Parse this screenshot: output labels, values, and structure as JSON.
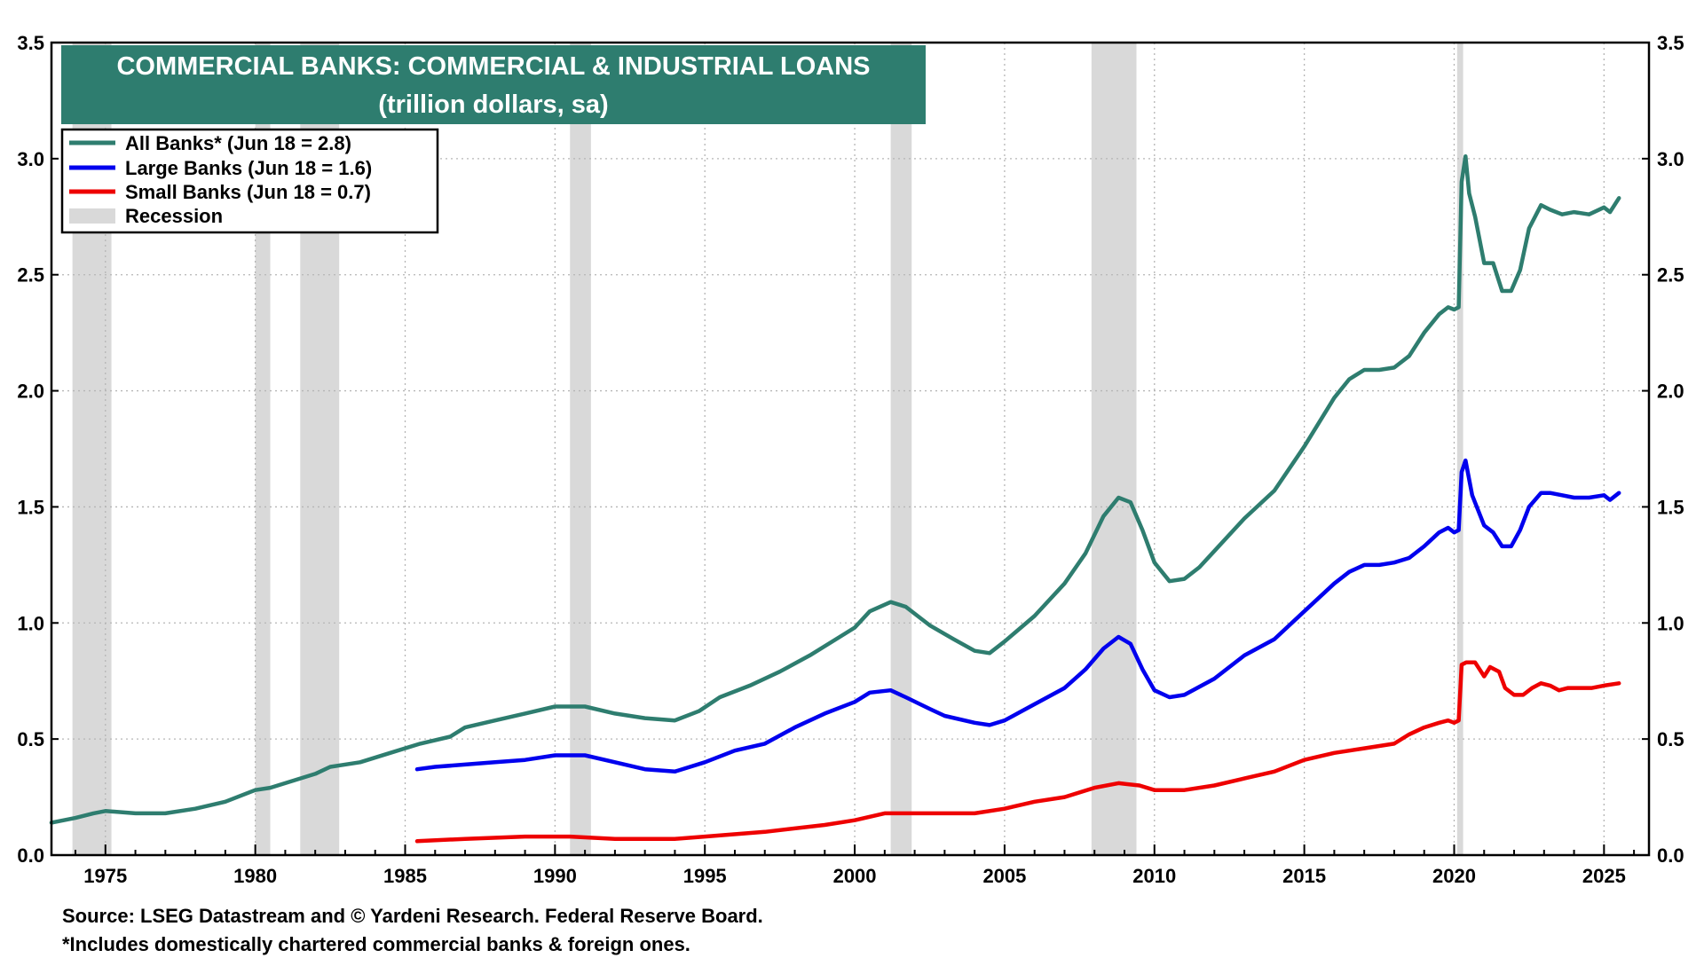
{
  "chart_data": {
    "type": "line",
    "title": "COMMERCIAL BANKS: COMMERCIAL & INDUSTRIAL LOANS",
    "subtitle": "(trillion dollars, sa)",
    "xlabel": "",
    "ylabel": "",
    "xlim": [
      1973.2,
      2026.5
    ],
    "ylim": [
      0,
      3.5
    ],
    "yticks": [
      0.0,
      0.5,
      1.0,
      1.5,
      2.0,
      2.5,
      3.0,
      3.5
    ],
    "ytick_labels": [
      "0.0",
      "0.5",
      "1.0",
      "1.5",
      "2.0",
      "2.5",
      "3.0",
      "3.5"
    ],
    "xticks": [
      1975,
      1980,
      1985,
      1990,
      1995,
      2000,
      2005,
      2010,
      2015,
      2020,
      2025
    ],
    "xtick_labels": [
      "1975",
      "1980",
      "1985",
      "1990",
      "1995",
      "2000",
      "2005",
      "2010",
      "2015",
      "2020",
      "2025"
    ],
    "grid": true,
    "legend_position": "top-left",
    "colors": {
      "title_bg": "#2e7d6f",
      "all_banks": "#2e7d6f",
      "large_banks": "#0000ee",
      "small_banks": "#ee0000",
      "recession": "#d9d9d9"
    },
    "recessions": [
      {
        "start": 1973.9,
        "end": 1975.2
      },
      {
        "start": 1980.0,
        "end": 1980.5
      },
      {
        "start": 1981.5,
        "end": 1982.8
      },
      {
        "start": 1990.5,
        "end": 1991.2
      },
      {
        "start": 2001.2,
        "end": 2001.9
      },
      {
        "start": 2007.9,
        "end": 2009.4
      },
      {
        "start": 2020.1,
        "end": 2020.3
      }
    ],
    "series": [
      {
        "name": "All Banks",
        "legend": "All Banks* (Jun 18 = 2.8)",
        "color": "#2e7d6f",
        "x": [
          1973.2,
          1974.0,
          1974.6,
          1975.0,
          1976.0,
          1977.0,
          1978.0,
          1979.0,
          1980.0,
          1980.5,
          1981.0,
          1982.0,
          1982.5,
          1983.5,
          1984.5,
          1985.5,
          1986.5,
          1987.0,
          1988.0,
          1989.0,
          1990.0,
          1991.0,
          1992.0,
          1993.0,
          1994.0,
          1994.8,
          1995.5,
          1996.5,
          1997.5,
          1998.5,
          1999.5,
          2000.0,
          2000.5,
          2001.2,
          2001.7,
          2002.5,
          2003.3,
          2004.0,
          2004.5,
          2005.0,
          2006.0,
          2007.0,
          2007.7,
          2008.3,
          2008.8,
          2009.2,
          2009.6,
          2010.0,
          2010.5,
          2011.0,
          2011.5,
          2012.0,
          2013.0,
          2014.0,
          2015.0,
          2016.0,
          2016.5,
          2017.0,
          2017.5,
          2018.0,
          2018.5,
          2019.0,
          2019.5,
          2019.8,
          2020.0,
          2020.15,
          2020.25,
          2020.38,
          2020.5,
          2020.7,
          2021.0,
          2021.3,
          2021.6,
          2021.9,
          2022.2,
          2022.5,
          2022.9,
          2023.2,
          2023.6,
          2024.0,
          2024.5,
          2025.0,
          2025.2,
          2025.5
        ],
        "values": [
          0.14,
          0.16,
          0.18,
          0.19,
          0.18,
          0.18,
          0.2,
          0.23,
          0.28,
          0.29,
          0.31,
          0.35,
          0.38,
          0.4,
          0.44,
          0.48,
          0.51,
          0.55,
          0.58,
          0.61,
          0.64,
          0.64,
          0.61,
          0.59,
          0.58,
          0.62,
          0.68,
          0.73,
          0.79,
          0.86,
          0.94,
          0.98,
          1.05,
          1.09,
          1.07,
          0.99,
          0.93,
          0.88,
          0.87,
          0.92,
          1.03,
          1.17,
          1.3,
          1.46,
          1.54,
          1.52,
          1.4,
          1.26,
          1.18,
          1.19,
          1.24,
          1.31,
          1.45,
          1.57,
          1.76,
          1.97,
          2.05,
          2.09,
          2.09,
          2.1,
          2.15,
          2.25,
          2.33,
          2.36,
          2.35,
          2.36,
          2.9,
          3.01,
          2.85,
          2.75,
          2.55,
          2.55,
          2.43,
          2.43,
          2.52,
          2.7,
          2.8,
          2.78,
          2.76,
          2.77,
          2.76,
          2.79,
          2.77,
          2.83
        ]
      },
      {
        "name": "Large Banks",
        "legend": "Large Banks (Jun 18 = 1.6)",
        "color": "#0000ee",
        "x": [
          1985.4,
          1986.0,
          1987.0,
          1988.0,
          1989.0,
          1990.0,
          1991.0,
          1992.0,
          1993.0,
          1994.0,
          1995.0,
          1996.0,
          1997.0,
          1998.0,
          1999.0,
          2000.0,
          2000.5,
          2001.2,
          2001.7,
          2002.5,
          2003.0,
          2004.0,
          2004.5,
          2005.0,
          2006.0,
          2007.0,
          2007.7,
          2008.3,
          2008.8,
          2009.2,
          2009.6,
          2010.0,
          2010.5,
          2011.0,
          2012.0,
          2013.0,
          2014.0,
          2015.0,
          2016.0,
          2016.5,
          2017.0,
          2017.5,
          2018.0,
          2018.5,
          2019.0,
          2019.5,
          2019.8,
          2020.0,
          2020.15,
          2020.25,
          2020.38,
          2020.6,
          2021.0,
          2021.3,
          2021.6,
          2021.9,
          2022.2,
          2022.5,
          2022.9,
          2023.2,
          2023.6,
          2024.0,
          2024.5,
          2025.0,
          2025.2,
          2025.5
        ],
        "values": [
          0.37,
          0.38,
          0.39,
          0.4,
          0.41,
          0.43,
          0.43,
          0.4,
          0.37,
          0.36,
          0.4,
          0.45,
          0.48,
          0.55,
          0.61,
          0.66,
          0.7,
          0.71,
          0.68,
          0.63,
          0.6,
          0.57,
          0.56,
          0.58,
          0.65,
          0.72,
          0.8,
          0.89,
          0.94,
          0.91,
          0.8,
          0.71,
          0.68,
          0.69,
          0.76,
          0.86,
          0.93,
          1.05,
          1.17,
          1.22,
          1.25,
          1.25,
          1.26,
          1.28,
          1.33,
          1.39,
          1.41,
          1.39,
          1.4,
          1.65,
          1.7,
          1.55,
          1.42,
          1.39,
          1.33,
          1.33,
          1.4,
          1.5,
          1.56,
          1.56,
          1.55,
          1.54,
          1.54,
          1.55,
          1.53,
          1.56
        ]
      },
      {
        "name": "Small Banks",
        "legend": "Small Banks (Jun 18 = 0.7)",
        "color": "#ee0000",
        "x": [
          1985.4,
          1987.0,
          1989.0,
          1990.5,
          1992.0,
          1994.0,
          1995.0,
          1997.0,
          1999.0,
          2000.0,
          2001.0,
          2002.0,
          2003.0,
          2004.0,
          2005.0,
          2006.0,
          2007.0,
          2008.0,
          2008.8,
          2009.5,
          2010.0,
          2011.0,
          2012.0,
          2013.0,
          2014.0,
          2015.0,
          2016.0,
          2017.0,
          2018.0,
          2018.5,
          2019.0,
          2019.5,
          2019.8,
          2020.0,
          2020.15,
          2020.25,
          2020.4,
          2020.7,
          2021.0,
          2021.2,
          2021.5,
          2021.7,
          2022.0,
          2022.3,
          2022.6,
          2022.9,
          2023.2,
          2023.5,
          2023.8,
          2024.2,
          2024.6,
          2025.0,
          2025.5
        ],
        "values": [
          0.06,
          0.07,
          0.08,
          0.08,
          0.07,
          0.07,
          0.08,
          0.1,
          0.13,
          0.15,
          0.18,
          0.18,
          0.18,
          0.18,
          0.2,
          0.23,
          0.25,
          0.29,
          0.31,
          0.3,
          0.28,
          0.28,
          0.3,
          0.33,
          0.36,
          0.41,
          0.44,
          0.46,
          0.48,
          0.52,
          0.55,
          0.57,
          0.58,
          0.57,
          0.58,
          0.82,
          0.83,
          0.83,
          0.77,
          0.81,
          0.79,
          0.72,
          0.69,
          0.69,
          0.72,
          0.74,
          0.73,
          0.71,
          0.72,
          0.72,
          0.72,
          0.73,
          0.74
        ]
      }
    ],
    "recession_legend": "Recession"
  },
  "footer": {
    "source": "Source: LSEG Datastream and © Yardeni Research. Federal Reserve Board.",
    "note": "*Includes domestically chartered commercial banks & foreign ones."
  }
}
